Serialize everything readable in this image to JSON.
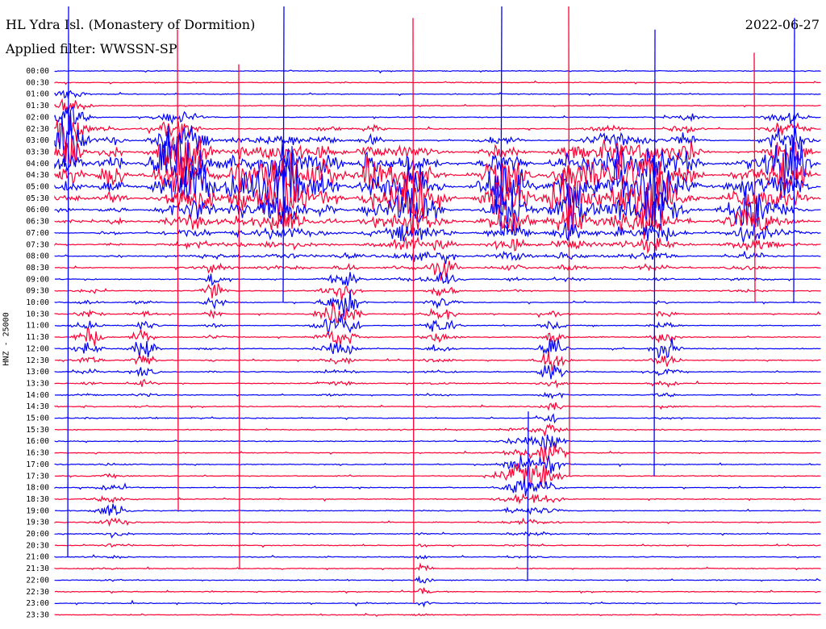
{
  "header": {
    "station": "HL Ydra Isl. (Monastery of Dormition)",
    "date": "2022-06-27",
    "filter": "Applied filter: WWSSN-SP"
  },
  "chart_data": {
    "type": "line",
    "title": "HL Ydra Isl. (Monastery of Dormition)",
    "subtitle": "Applied filter: WWSSN-SP",
    "ylabel": "HNZ - 25000",
    "xlabel": "",
    "series_colors": [
      "#0000ff",
      "#ff0033"
    ],
    "background": "#ffffff",
    "grid": false,
    "row_labels": [
      "00:00",
      "00:30",
      "01:00",
      "01:30",
      "02:00",
      "02:30",
      "03:00",
      "03:30",
      "04:00",
      "04:30",
      "05:00",
      "05:30",
      "06:00",
      "06:30",
      "07:00",
      "07:30",
      "08:00",
      "08:30",
      "09:00",
      "09:30",
      "10:00",
      "10:30",
      "11:00",
      "11:30",
      "12:00",
      "12:30",
      "13:00",
      "13:30",
      "14:00",
      "14:30",
      "15:00",
      "15:30",
      "16:00",
      "16:30",
      "17:00",
      "17:30",
      "18:00",
      "18:30",
      "19:00",
      "19:30",
      "20:00",
      "20:30",
      "21:00",
      "21:30",
      "22:00",
      "22:30",
      "23:00",
      "23:30"
    ],
    "rows_per_trace_minutes": 30
  }
}
